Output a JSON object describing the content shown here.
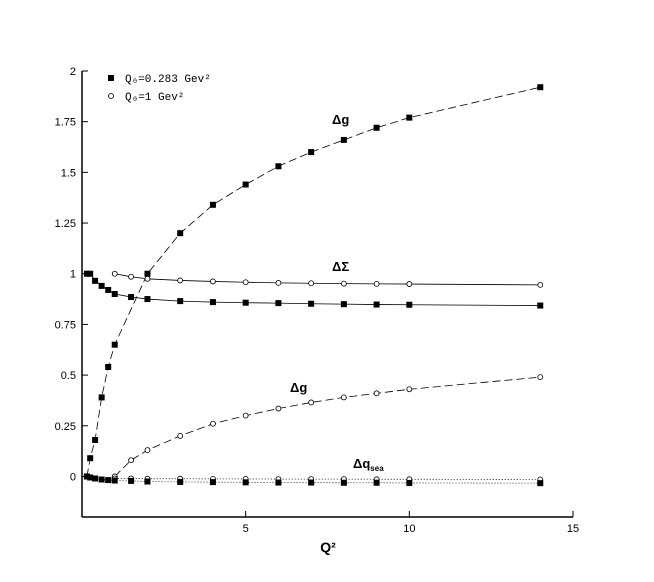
{
  "chart_data": {
    "type": "line",
    "x_label": "Q²",
    "xlim": [
      0,
      15
    ],
    "xticks": [
      5,
      10,
      15
    ],
    "ylim": [
      -0.2,
      2
    ],
    "yticks": [
      0,
      0.25,
      0.5,
      0.75,
      1,
      1.25,
      1.5,
      1.75,
      2
    ],
    "legend": [
      {
        "name": "Q₀=0.283 Gev²",
        "marker": "filled-square"
      },
      {
        "name": "Q₀=1 Gev²",
        "marker": "open-circle"
      }
    ],
    "legend_position": "upper left",
    "annotations": [
      {
        "text": "Δg"
      },
      {
        "text": "ΔΣ"
      },
      {
        "text": "Δg"
      },
      {
        "text": "Δq",
        "sub": "sea"
      }
    ],
    "series": [
      {
        "marker": "filled-square",
        "dash": "dashed",
        "color": "#000000",
        "x": [
          0.15,
          0.25,
          0.4,
          0.6,
          0.8,
          1,
          2,
          3,
          4,
          5,
          6,
          7,
          8,
          9,
          10,
          14
        ],
        "values": [
          0,
          0.09,
          0.18,
          0.39,
          0.54,
          0.65,
          1.0,
          1.2,
          1.34,
          1.44,
          1.53,
          1.6,
          1.66,
          1.72,
          1.77,
          1.92
        ]
      },
      {
        "marker": "filled-square",
        "dash": "solid",
        "color": "#000000",
        "x": [
          0.15,
          0.25,
          0.4,
          0.6,
          0.8,
          1,
          1.5,
          2,
          3,
          4,
          5,
          6,
          7,
          8,
          9,
          10,
          14
        ],
        "values": [
          1.0,
          1.0,
          0.965,
          0.94,
          0.92,
          0.9,
          0.885,
          0.875,
          0.865,
          0.86,
          0.857,
          0.855,
          0.852,
          0.85,
          0.848,
          0.847,
          0.843
        ]
      },
      {
        "marker": "open-circle",
        "dash": "solid",
        "color": "#000000",
        "x": [
          1,
          1.5,
          2,
          3,
          4,
          5,
          6,
          7,
          8,
          9,
          10,
          14
        ],
        "values": [
          1.0,
          0.985,
          0.975,
          0.967,
          0.962,
          0.958,
          0.955,
          0.953,
          0.951,
          0.95,
          0.949,
          0.945
        ]
      },
      {
        "marker": "open-circle",
        "dash": "dashed",
        "color": "#000000",
        "x": [
          1,
          1.5,
          2,
          3,
          4,
          5,
          6,
          7,
          8,
          9,
          10,
          14
        ],
        "values": [
          0,
          0.08,
          0.13,
          0.2,
          0.26,
          0.3,
          0.335,
          0.365,
          0.39,
          0.41,
          0.43,
          0.49
        ]
      },
      {
        "marker": "open-circle",
        "dash": "dotted",
        "color": "#000000",
        "x": [
          1,
          1.5,
          2,
          3,
          4,
          5,
          6,
          7,
          8,
          9,
          10,
          14
        ],
        "values": [
          -0.01,
          -0.01,
          -0.011,
          -0.011,
          -0.012,
          -0.012,
          -0.013,
          -0.013,
          -0.013,
          -0.014,
          -0.014,
          -0.015
        ]
      },
      {
        "marker": "filled-square",
        "dash": "dotted",
        "color": "#000000",
        "x": [
          0.15,
          0.25,
          0.4,
          0.6,
          0.8,
          1,
          1.5,
          2,
          3,
          4,
          5,
          6,
          7,
          8,
          9,
          10,
          14
        ],
        "values": [
          0,
          -0.005,
          -0.01,
          -0.015,
          -0.018,
          -0.02,
          -0.022,
          -0.025,
          -0.027,
          -0.028,
          -0.029,
          -0.03,
          -0.03,
          -0.031,
          -0.031,
          -0.032,
          -0.033
        ]
      }
    ]
  }
}
